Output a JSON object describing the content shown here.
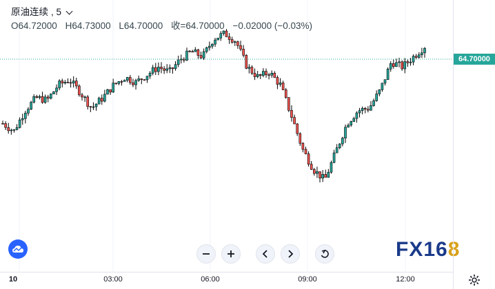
{
  "header": {
    "symbol": "原油连续",
    "interval": ", 5",
    "ohlc": {
      "open": "O64.72000",
      "high": "H64.73000",
      "low": "L64.70000",
      "close": "收=64.70000",
      "change": "−0.02000 (−0.03%)"
    }
  },
  "price_axis": {
    "current_price_label": "64.70000"
  },
  "time_axis": {
    "labels": [
      "10",
      "03:00",
      "06:00",
      "09:00",
      "12:00"
    ]
  },
  "logo": {
    "text": "FX16",
    "accent_text": "8"
  },
  "icons": [
    "chevron-down-icon",
    "cloud-icon",
    "zoom-out-icon",
    "zoom-in-icon",
    "scroll-left-icon",
    "scroll-right-icon",
    "reset-icon",
    "gear-icon"
  ],
  "colors": {
    "up": "#26a69a",
    "down": "#ef5350",
    "candle_body": "#000000",
    "price_line": "#26a69a"
  },
  "chart_data": {
    "type": "candlestick",
    "series_name": "原油连续",
    "interval": "5",
    "current_price": 64.7,
    "x_tick_labels": [
      "10",
      "03:00",
      "06:00",
      "09:00",
      "12:00"
    ],
    "y_range_estimated": [
      63.93,
      64.76
    ],
    "close_path": [
      64.4,
      64.37,
      64.45,
      64.5,
      64.49,
      64.55,
      64.57,
      64.52,
      64.46,
      64.5,
      64.55,
      64.58,
      64.56,
      64.59,
      64.62,
      64.6,
      64.65,
      64.68,
      64.66,
      64.73,
      64.75,
      64.72,
      64.62,
      64.58,
      64.6,
      64.55,
      64.43,
      64.3,
      64.22,
      64.18,
      64.29,
      64.4,
      64.45,
      64.46,
      64.53,
      64.64,
      64.62,
      64.66,
      64.7
    ],
    "candle_count": 150
  }
}
